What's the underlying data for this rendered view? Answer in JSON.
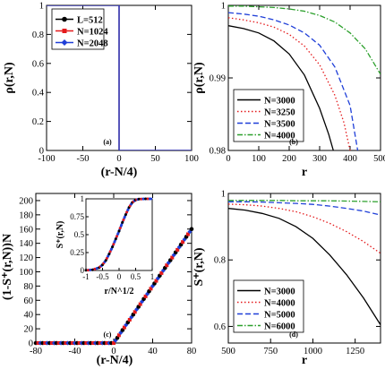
{
  "chart_data": [
    {
      "panel": "(a)",
      "type": "line",
      "xlabel": "(r-N/4)",
      "ylabel": "ρ(r,N)",
      "xlim": [
        -100,
        100
      ],
      "ylim": [
        0,
        1
      ],
      "xticks": [
        "-100",
        "-50",
        "0",
        "50",
        "100"
      ],
      "yticks": [
        "0",
        "0.2",
        "0.4",
        "0.6",
        "0.8",
        "1"
      ],
      "legend_position": "top-left",
      "series": [
        {
          "name": "L=512",
          "color": "#000000",
          "marker": "circle",
          "x": [
            -100,
            0,
            0,
            100
          ],
          "y": [
            1,
            1,
            0,
            0
          ]
        },
        {
          "name": "N=1024",
          "color": "#e41a1c",
          "marker": "square",
          "x": [
            -100,
            0,
            0,
            100
          ],
          "y": [
            1,
            1,
            0,
            0
          ]
        },
        {
          "name": "N=2048",
          "color": "#1f3fd8",
          "marker": "diamond",
          "x": [
            -100,
            0,
            0,
            100
          ],
          "y": [
            1,
            1,
            0,
            0
          ]
        }
      ]
    },
    {
      "panel": "(b)",
      "type": "line",
      "xlabel": "r",
      "ylabel": "ρ(r,N)",
      "xlim": [
        0,
        500
      ],
      "ylim": [
        0.98,
        1
      ],
      "xticks": [
        "0",
        "100",
        "200",
        "300",
        "400",
        "500"
      ],
      "yticks": [
        "0.98",
        "0.99",
        "1"
      ],
      "legend_position": "bottom-left",
      "series": [
        {
          "name": "N=3000",
          "color": "#000000",
          "dash": "solid",
          "x": [
            0,
            50,
            100,
            150,
            200,
            250,
            300,
            330,
            345
          ],
          "y": [
            0.9972,
            0.9968,
            0.9962,
            0.9951,
            0.9933,
            0.9904,
            0.9858,
            0.9822,
            0.98
          ]
        },
        {
          "name": "N=3250",
          "color": "#e41a1c",
          "dash": "dotted",
          "x": [
            0,
            50,
            100,
            150,
            200,
            250,
            300,
            350,
            380,
            400
          ],
          "y": [
            0.9983,
            0.998,
            0.9976,
            0.997,
            0.996,
            0.9944,
            0.9918,
            0.9876,
            0.9838,
            0.98
          ]
        },
        {
          "name": "N=3500",
          "color": "#1f3fd8",
          "dash": "dashed",
          "x": [
            0,
            50,
            100,
            150,
            200,
            250,
            300,
            350,
            400,
            425
          ],
          "y": [
            0.999,
            0.9988,
            0.9985,
            0.998,
            0.9973,
            0.9962,
            0.9945,
            0.9915,
            0.9862,
            0.98
          ]
        },
        {
          "name": "N=4000",
          "color": "#2ca02c",
          "dash": "dash-dot",
          "x": [
            0,
            50,
            100,
            150,
            200,
            250,
            300,
            350,
            400,
            450,
            500
          ],
          "y": [
            0.9999,
            0.9999,
            0.9998,
            0.9997,
            0.9995,
            0.9992,
            0.9986,
            0.9977,
            0.9962,
            0.994,
            0.9905
          ]
        }
      ]
    },
    {
      "panel": "(c)",
      "type": "line",
      "xlabel": "(r-N/4)",
      "ylabel": "(1-S⁺(r,N))N",
      "xlim": [
        -80,
        80
      ],
      "ylim": [
        0,
        210
      ],
      "xticks": [
        "-80",
        "-40",
        "0",
        "40",
        "80"
      ],
      "yticks": [
        "0",
        "20",
        "40",
        "60",
        "80",
        "100",
        "120",
        "140",
        "160",
        "180",
        "200"
      ],
      "series": [
        {
          "name": "",
          "color": "#000000",
          "marker": "circle",
          "x": [
            -80,
            0,
            80
          ],
          "y": [
            0,
            0,
            160
          ]
        },
        {
          "name": "",
          "color": "#e41a1c",
          "marker": "square",
          "x": [
            -80,
            0,
            80
          ],
          "y": [
            0,
            0,
            160
          ]
        },
        {
          "name": "",
          "color": "#1f3fd8",
          "marker": "diamond",
          "x": [
            -80,
            0,
            80
          ],
          "y": [
            0,
            0,
            160
          ]
        }
      ],
      "inset": {
        "type": "line",
        "xlabel": "r/N^1/2",
        "ylabel": "S⁺(r,N)",
        "xlim": [
          -1,
          1
        ],
        "ylim": [
          0,
          1
        ],
        "xticks": [
          "-1",
          "-0.5",
          "0",
          "0.5",
          "1"
        ],
        "yticks": [
          "0",
          "0.25",
          "0.5",
          "0.75",
          "1"
        ],
        "x": [
          -1,
          -0.8,
          -0.6,
          -0.5,
          -0.4,
          -0.3,
          -0.2,
          -0.1,
          0,
          0.1,
          0.2,
          0.3,
          0.4,
          0.5,
          0.6,
          0.8,
          1
        ],
        "y": [
          0.002,
          0.01,
          0.04,
          0.08,
          0.14,
          0.23,
          0.33,
          0.44,
          0.55,
          0.67,
          0.78,
          0.88,
          0.95,
          0.985,
          0.997,
          1,
          1
        ]
      }
    },
    {
      "panel": "(d)",
      "type": "line",
      "xlabel": "r",
      "ylabel": "S⁺(r,N)",
      "xlim": [
        500,
        1400
      ],
      "ylim": [
        0.55,
        1
      ],
      "xticks": [
        "500",
        "750",
        "1000",
        "1250"
      ],
      "yticks": [
        "0.6",
        "0.8",
        "1"
      ],
      "legend_position": "bottom-left",
      "series": [
        {
          "name": "N=3000",
          "color": "#000000",
          "dash": "solid",
          "x": [
            500,
            600,
            700,
            800,
            900,
            1000,
            1100,
            1200,
            1300,
            1400
          ],
          "y": [
            0.955,
            0.95,
            0.94,
            0.925,
            0.9,
            0.865,
            0.815,
            0.755,
            0.685,
            0.605
          ]
        },
        {
          "name": "N=4000",
          "color": "#e41a1c",
          "dash": "dotted",
          "x": [
            500,
            600,
            700,
            800,
            900,
            1000,
            1100,
            1200,
            1300,
            1400
          ],
          "y": [
            0.968,
            0.966,
            0.962,
            0.955,
            0.945,
            0.93,
            0.91,
            0.885,
            0.855,
            0.82
          ]
        },
        {
          "name": "N=5000",
          "color": "#1f3fd8",
          "dash": "dashed",
          "x": [
            500,
            600,
            700,
            800,
            900,
            1000,
            1100,
            1200,
            1300,
            1400
          ],
          "y": [
            0.975,
            0.975,
            0.974,
            0.972,
            0.97,
            0.967,
            0.962,
            0.955,
            0.947,
            0.935
          ]
        },
        {
          "name": "N=6000",
          "color": "#2ca02c",
          "dash": "dash-dot",
          "x": [
            500,
            600,
            700,
            800,
            900,
            1000,
            1100,
            1200,
            1300,
            1400
          ],
          "y": [
            0.979,
            0.979,
            0.979,
            0.979,
            0.978,
            0.978,
            0.978,
            0.977,
            0.976,
            0.975
          ]
        }
      ]
    }
  ]
}
